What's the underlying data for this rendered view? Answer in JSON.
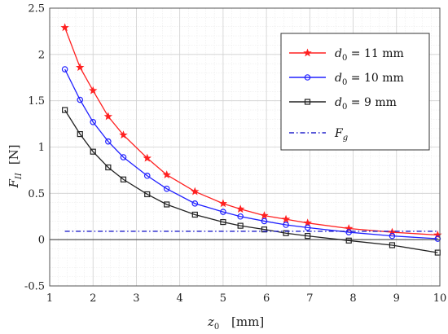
{
  "chart_data": {
    "type": "line",
    "title": "",
    "xlabel": {
      "symbol": "z",
      "sub": "0",
      "unit": "[mm]"
    },
    "ylabel": {
      "symbol": "F",
      "sub": "II",
      "unit": "[N]"
    },
    "xlim": [
      1,
      10
    ],
    "ylim": [
      -0.5,
      2.5
    ],
    "xticks": [
      1,
      2,
      3,
      4,
      5,
      6,
      7,
      8,
      9,
      10
    ],
    "yticks": [
      -0.5,
      0,
      0.5,
      1,
      1.5,
      2,
      2.5
    ],
    "xtick_labels": [
      "1",
      "2",
      "3",
      "4",
      "5",
      "6",
      "7",
      "8",
      "9",
      "10"
    ],
    "ytick_labels": [
      "-0.5",
      "0",
      "0.5",
      "1",
      "1.5",
      "2",
      "2.5"
    ],
    "grid": true,
    "minor_grid": true,
    "legend_position": "top-right",
    "zero_line": true,
    "series": [
      {
        "name": "d0 = 11 mm",
        "legend_label": {
          "symbol": "d",
          "sub": "0",
          "text": " = 11 mm"
        },
        "color": "#ff2020",
        "marker": "star",
        "x": [
          1.35,
          1.7,
          2.0,
          2.35,
          2.7,
          3.25,
          3.7,
          4.35,
          5.0,
          5.4,
          5.95,
          6.45,
          6.95,
          7.9,
          8.9,
          9.95
        ],
        "y": [
          2.29,
          1.86,
          1.61,
          1.33,
          1.13,
          0.88,
          0.7,
          0.52,
          0.39,
          0.33,
          0.26,
          0.22,
          0.18,
          0.12,
          0.08,
          0.05
        ]
      },
      {
        "name": "d0 = 10 mm",
        "legend_label": {
          "symbol": "d",
          "sub": "0",
          "text": " = 10 mm"
        },
        "color": "#2020ff",
        "marker": "circle",
        "x": [
          1.35,
          1.7,
          2.0,
          2.35,
          2.7,
          3.25,
          3.7,
          4.35,
          5.0,
          5.4,
          5.95,
          6.45,
          6.95,
          7.9,
          8.9,
          9.95
        ],
        "y": [
          1.84,
          1.51,
          1.27,
          1.06,
          0.89,
          0.69,
          0.55,
          0.39,
          0.3,
          0.25,
          0.2,
          0.16,
          0.13,
          0.08,
          0.04,
          0.01
        ]
      },
      {
        "name": "d0 = 9 mm",
        "legend_label": {
          "symbol": "d",
          "sub": "0",
          "text": " = 9 mm"
        },
        "color": "#222222",
        "marker": "square",
        "x": [
          1.35,
          1.7,
          2.0,
          2.35,
          2.7,
          3.25,
          3.7,
          4.35,
          5.0,
          5.4,
          5.95,
          6.45,
          6.95,
          7.9,
          8.9,
          9.95
        ],
        "y": [
          1.4,
          1.14,
          0.95,
          0.78,
          0.65,
          0.49,
          0.38,
          0.27,
          0.19,
          0.15,
          0.11,
          0.07,
          0.04,
          -0.01,
          -0.06,
          -0.14
        ]
      },
      {
        "name": "Fg",
        "legend_label": {
          "symbol": "F",
          "sub": "g",
          "text": ""
        },
        "color": "#2222cc",
        "marker": "none",
        "dash": "dashdot",
        "x": [
          1.35,
          9.95
        ],
        "y": [
          0.09,
          0.09
        ]
      }
    ]
  }
}
